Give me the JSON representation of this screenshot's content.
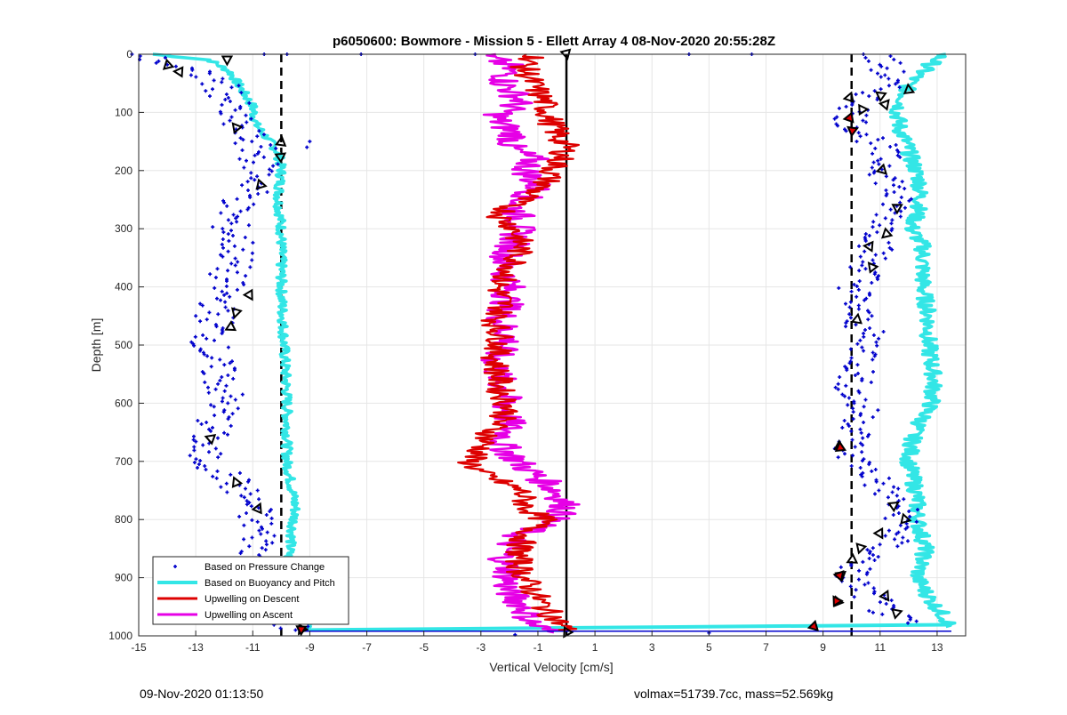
{
  "chart_data": {
    "type": "scatter",
    "title": "p6050600: Bowmore - Mission 5 - Ellett Array 4 08-Nov-2020 20:55:28Z",
    "xlabel": "Vertical Velocity [cm/s]",
    "ylabel": "Depth [m]",
    "xlim": [
      -15,
      14
    ],
    "ylim": [
      0,
      1000
    ],
    "y_reversed": true,
    "grid": true,
    "xticks": [
      -15,
      -13,
      -11,
      -9,
      -7,
      -5,
      -3,
      -1,
      1,
      3,
      5,
      7,
      9,
      11,
      13
    ],
    "yticks": [
      0,
      100,
      200,
      300,
      400,
      500,
      600,
      700,
      800,
      900,
      1000
    ],
    "legend_position": "bottom-left",
    "reference_lines": {
      "dashed_x": [
        -10,
        10
      ],
      "solid_x": [
        0
      ]
    },
    "series": [
      {
        "name": "Based on Pressure Change",
        "style": "points",
        "color": "#0000cc",
        "description_values": "two columns of scattered points",
        "left_depth": [
          0,
          20,
          40,
          60,
          80,
          100,
          120,
          140,
          160,
          180,
          200,
          220,
          240,
          260,
          280,
          300,
          320,
          340,
          360,
          380,
          400,
          420,
          440,
          460,
          480,
          500,
          520,
          540,
          560,
          580,
          600,
          620,
          640,
          660,
          680,
          700,
          720,
          740,
          760,
          780,
          800,
          820,
          840,
          860,
          880,
          900,
          920,
          940,
          960,
          980,
          990
        ],
        "left_center": [
          -15,
          -13.8,
          -12.5,
          -12,
          -11.8,
          -11.9,
          -11.6,
          -11.2,
          -10.9,
          -10.8,
          -10.7,
          -10.8,
          -11.1,
          -11.6,
          -11.8,
          -11.8,
          -11.6,
          -11.5,
          -11.7,
          -11.9,
          -12.0,
          -12.1,
          -12.3,
          -12.3,
          -12.4,
          -12.5,
          -12.4,
          -12.3,
          -12.1,
          -12.0,
          -12.0,
          -12.2,
          -12.4,
          -12.6,
          -12.9,
          -12.6,
          -12.0,
          -11.6,
          -11.3,
          -11.0,
          -10.9,
          -10.8,
          -10.7,
          -10.8,
          -10.9,
          -10.9,
          -10.6,
          -10.4,
          -10.1,
          -9.8,
          -9.4
        ],
        "right_depth": [
          0,
          20,
          40,
          60,
          80,
          100,
          120,
          140,
          160,
          180,
          200,
          220,
          240,
          260,
          280,
          300,
          320,
          340,
          360,
          380,
          400,
          420,
          440,
          460,
          480,
          500,
          520,
          540,
          560,
          580,
          600,
          620,
          640,
          660,
          680,
          700,
          720,
          740,
          760,
          780,
          800,
          820,
          840,
          860,
          880,
          900,
          920,
          940,
          960,
          980
        ],
        "right_center": [
          10.8,
          11.2,
          11.3,
          11.0,
          10.4,
          10.1,
          10.0,
          10.6,
          11.0,
          11.1,
          11.2,
          11.4,
          11.5,
          11.5,
          11.4,
          11.2,
          11.0,
          10.8,
          10.6,
          10.5,
          10.2,
          10.1,
          10.1,
          10.3,
          10.5,
          10.6,
          10.5,
          10.3,
          10.1,
          10.0,
          10.2,
          10.4,
          10.3,
          10.1,
          9.8,
          10.2,
          10.7,
          11.0,
          11.3,
          11.7,
          11.8,
          11.7,
          11.3,
          10.8,
          10.2,
          9.9,
          10.4,
          10.8,
          11.2,
          11.8
        ]
      },
      {
        "name": "Based on Buoyancy and Pitch",
        "style": "thick-line",
        "color": "#33e6e6",
        "left_depth": [
          0,
          10,
          30,
          60,
          90,
          120,
          150,
          170,
          200,
          250,
          300,
          400,
          500,
          600,
          700,
          780,
          850,
          900,
          950,
          975,
          990
        ],
        "left_x": [
          -14.5,
          -12.5,
          -11.8,
          -11.4,
          -11.0,
          -10.9,
          -10.4,
          -10.1,
          -10.0,
          -10.1,
          -10.0,
          -10.0,
          -9.9,
          -9.8,
          -9.8,
          -9.5,
          -9.7,
          -9.9,
          -9.7,
          -8.9,
          -9.3
        ],
        "right_depth": [
          0,
          50,
          80,
          100,
          130,
          150,
          180,
          220,
          260,
          300,
          330,
          400,
          450,
          500,
          560,
          600,
          650,
          700,
          760,
          800,
          850,
          900,
          940,
          970,
          985
        ],
        "right_x": [
          13.2,
          12.0,
          11.8,
          11.6,
          11.7,
          11.9,
          12.1,
          12.4,
          12.4,
          12.1,
          12.5,
          12.5,
          12.7,
          12.7,
          12.9,
          12.8,
          12.2,
          12.0,
          12.3,
          12.3,
          12.6,
          12.3,
          12.8,
          13.3,
          13.5
        ],
        "bottom_sweep": {
          "depth": 990,
          "x_from": -9.3,
          "x_to": 13.5
        }
      },
      {
        "name": "Upwelling on Descent",
        "style": "line",
        "color": "#dd0000",
        "depth": [
          0,
          20,
          50,
          80,
          110,
          140,
          160,
          180,
          200,
          220,
          240,
          260,
          280,
          300,
          330,
          360,
          400,
          430,
          460,
          490,
          520,
          550,
          580,
          610,
          640,
          660,
          680,
          700,
          720,
          750,
          780,
          800,
          830,
          860,
          890,
          920,
          950,
          970,
          990
        ],
        "x": [
          -1.0,
          -1.5,
          -1.2,
          -0.8,
          -0.6,
          -0.3,
          0.0,
          -0.2,
          -0.5,
          -0.7,
          -1.2,
          -2.0,
          -2.3,
          -1.8,
          -1.6,
          -1.8,
          -2.4,
          -2.2,
          -2.5,
          -2.3,
          -2.5,
          -2.4,
          -2.3,
          -2.0,
          -2.5,
          -2.8,
          -3.0,
          -3.4,
          -3.0,
          -1.6,
          -1.4,
          -0.8,
          -1.5,
          -1.7,
          -1.6,
          -1.2,
          -0.8,
          -0.4,
          0.0
        ]
      },
      {
        "name": "Upwelling on Ascent",
        "style": "line",
        "color": "#e600e6",
        "depth": [
          0,
          20,
          50,
          80,
          110,
          140,
          160,
          180,
          200,
          230,
          260,
          290,
          330,
          360,
          400,
          430,
          460,
          490,
          520,
          550,
          580,
          610,
          640,
          670,
          700,
          720,
          740,
          760,
          780,
          800,
          830,
          860,
          890,
          920,
          950,
          980,
          995
        ],
        "x": [
          -3.0,
          -2.0,
          -2.2,
          -1.6,
          -2.5,
          -1.8,
          -2.0,
          -1.2,
          -1.4,
          -1.0,
          -1.8,
          -1.6,
          -1.9,
          -2.2,
          -2.0,
          -2.1,
          -2.3,
          -2.0,
          -2.5,
          -2.4,
          -2.2,
          -2.1,
          -2.0,
          -2.3,
          -1.7,
          -1.2,
          -0.6,
          -0.2,
          0.0,
          -0.5,
          -1.8,
          -2.2,
          -2.0,
          -2.1,
          -1.5,
          -1.2,
          -0.5
        ]
      }
    ],
    "triangle_markers": {
      "left": [
        [
          -11.9,
          10
        ],
        [
          -14.0,
          20
        ],
        [
          -13.6,
          30
        ],
        [
          -11.6,
          125
        ],
        [
          -10.0,
          150
        ],
        [
          -10.0,
          175
        ],
        [
          -10.7,
          225
        ],
        [
          -11.1,
          415
        ],
        [
          -11.6,
          445
        ],
        [
          -11.8,
          470
        ],
        [
          -12.5,
          660
        ],
        [
          -11.6,
          735
        ],
        [
          -10.8,
          780
        ],
        [
          -11.0,
          905
        ],
        [
          -10.9,
          930
        ],
        [
          -9.8,
          955
        ],
        [
          -9.3,
          990
        ]
      ],
      "right": [
        [
          9.9,
          75
        ],
        [
          11.0,
          70
        ],
        [
          12.0,
          60
        ],
        [
          11.2,
          85
        ],
        [
          10.4,
          95
        ],
        [
          11.1,
          200
        ],
        [
          11.6,
          265
        ],
        [
          11.2,
          310
        ],
        [
          10.6,
          330
        ],
        [
          10.7,
          365
        ],
        [
          10.2,
          455
        ],
        [
          11.5,
          775
        ],
        [
          11.9,
          800
        ],
        [
          11.0,
          825
        ],
        [
          10.3,
          850
        ],
        [
          10.0,
          870
        ],
        [
          9.6,
          895
        ],
        [
          9.5,
          940
        ],
        [
          11.2,
          930
        ],
        [
          11.6,
          960
        ],
        [
          9.6,
          675
        ]
      ],
      "center": [
        [
          0.0,
          0
        ],
        [
          0.0,
          995
        ]
      ],
      "red_fill": [
        [
          9.9,
          110
        ],
        [
          10.0,
          130
        ],
        [
          9.6,
          675
        ],
        [
          9.6,
          895
        ],
        [
          9.5,
          940
        ],
        [
          8.7,
          985
        ],
        [
          -9.3,
          990
        ]
      ]
    }
  },
  "footer": {
    "left": "09-Nov-2020 01:13:50",
    "right": "volmax=51739.7cc, mass=52.569kg"
  }
}
